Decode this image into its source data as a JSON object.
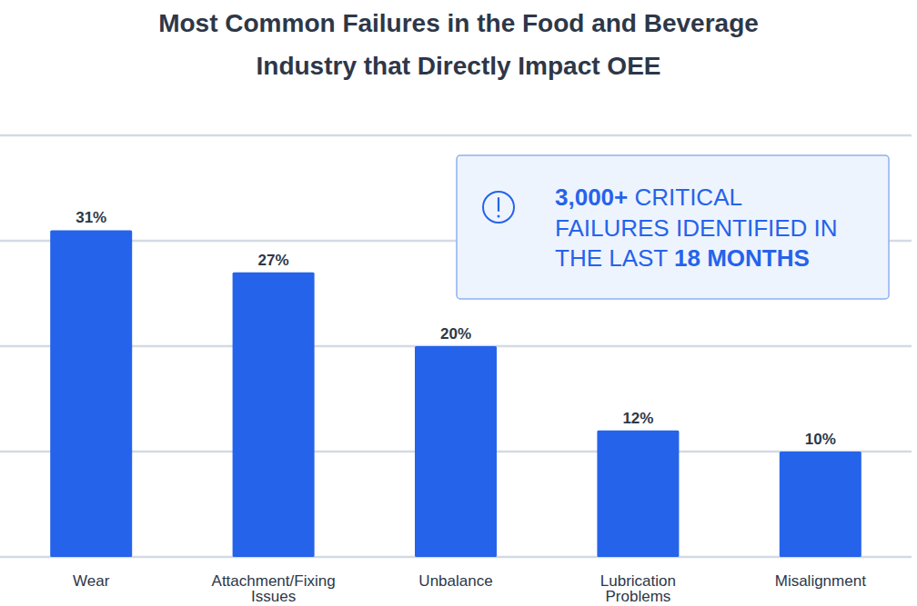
{
  "chart_data": {
    "type": "bar",
    "title": "Most Common Failures in the Food and Beverage Industry that Directly Impact OEE",
    "categories": [
      "Wear",
      "Attachment/Fixing Issues",
      "Unbalance",
      "Lubrication Problems",
      "Misalignment"
    ],
    "values": [
      31,
      27,
      20,
      12,
      10
    ],
    "value_labels": [
      "31%",
      "27%",
      "20%",
      "12%",
      "10%"
    ],
    "color": "#2563eb",
    "ylim": [
      0,
      40
    ],
    "yticks": [
      0,
      10,
      20,
      30,
      40
    ],
    "grid": true,
    "tick_labels": false,
    "data_labels": true,
    "annotation": {
      "lines": [
        "3,000+ CRITICAL",
        "FAILURES IDENTIFIED IN",
        "THE LAST 18 MONTHS"
      ],
      "emphasis": [
        "3,000+",
        "18 MONTHS"
      ]
    }
  }
}
